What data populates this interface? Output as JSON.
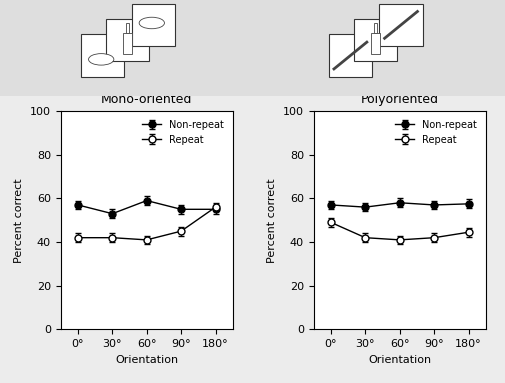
{
  "chart_data": [
    {
      "type": "line",
      "title": "Mono-oriented",
      "x_label": "Orientation",
      "y_label": "Percent correct",
      "categories": [
        "0°",
        "30°",
        "60°",
        "90°",
        "180°"
      ],
      "series": [
        {
          "name": "Non-repeat",
          "color": "#000000",
          "marker": "circle",
          "values": [
            57,
            53,
            59,
            55,
            55
          ],
          "errors": [
            2,
            2,
            2,
            2,
            2
          ]
        },
        {
          "name": "Repeat",
          "color": "#000000",
          "marker": "open_circle",
          "values": [
            42,
            42,
            41,
            45,
            56
          ],
          "errors": [
            2,
            2,
            2,
            2,
            2
          ]
        }
      ],
      "ylim": [
        0,
        100
      ],
      "yticks": [
        0,
        20,
        40,
        60,
        80,
        100
      ],
      "legend": "upper right",
      "grid": false
    },
    {
      "type": "line",
      "title": "Polyoriented",
      "x_label": "Orientation",
      "y_label": "Percent correct",
      "categories": [
        "0°",
        "30°",
        "60°",
        "90°",
        "180°"
      ],
      "series": [
        {
          "name": "Non-repeat",
          "color": "#000000",
          "marker": "circle",
          "values": [
            57,
            56,
            58,
            57,
            57.5
          ],
          "errors": [
            2,
            2,
            2,
            2,
            2
          ]
        },
        {
          "name": "Repeat",
          "color": "#000000",
          "marker": "open_circle",
          "values": [
            49,
            42,
            41,
            42,
            44.5
          ],
          "errors": [
            2,
            2,
            2,
            2,
            2
          ]
        }
      ],
      "ylim": [
        0,
        100
      ],
      "yticks": [
        0,
        20,
        40,
        60,
        80,
        100
      ],
      "legend": "upper right",
      "grid": false
    }
  ]
}
